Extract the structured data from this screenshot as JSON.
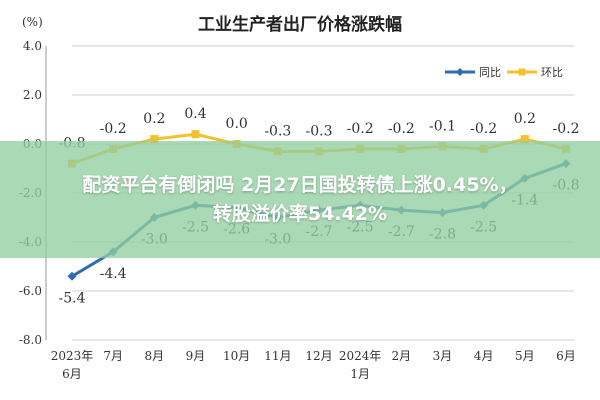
{
  "chart_data": {
    "type": "line",
    "title": "工业生产者出厂价格涨跌幅",
    "ylabel": "(%)",
    "xlabel": "",
    "ylim": [
      -8,
      4
    ],
    "yticks": [
      "4.0",
      "2.0",
      "0.0",
      "-2.0",
      "-4.0",
      "-6.0",
      "-8.0"
    ],
    "grid": true,
    "legend_position": "top-right",
    "categories": [
      [
        "2023年",
        "6月"
      ],
      [
        "7月"
      ],
      [
        "8月"
      ],
      [
        "9月"
      ],
      [
        "10月"
      ],
      [
        "11月"
      ],
      [
        "12月"
      ],
      [
        "2024年",
        "1月"
      ],
      [
        "2月"
      ],
      [
        "3月"
      ],
      [
        "4月"
      ],
      [
        "5月"
      ],
      [
        "6月"
      ]
    ],
    "series": [
      {
        "name": "同比",
        "color": "#2e6db4",
        "values": [
          -5.4,
          -4.4,
          -3.0,
          -2.5,
          -2.6,
          -3.0,
          -2.7,
          -2.5,
          -2.7,
          -2.8,
          -2.5,
          -1.4,
          -0.8
        ],
        "labels": [
          "-5.4",
          "-4.4",
          "-3.0",
          "-2.5",
          "-2.6",
          "-3.0",
          "-2.7",
          "-2.5",
          "-2.7",
          "-2.8",
          "-2.5",
          "-1.4",
          "-0.8"
        ],
        "label_position": "below"
      },
      {
        "name": "环比",
        "color": "#f2c12e",
        "values": [
          -0.8,
          -0.2,
          0.2,
          0.4,
          0.0,
          -0.3,
          -0.3,
          -0.2,
          -0.2,
          -0.1,
          -0.2,
          0.2,
          -0.2
        ],
        "labels": [
          "-0.8",
          "-0.2",
          "0.2",
          "0.4",
          "0.0",
          "-0.3",
          "-0.3",
          "-0.2",
          "-0.2",
          "-0.1",
          "-0.2",
          "0.2",
          "-0.2"
        ],
        "label_position": "above"
      }
    ]
  },
  "overlay": {
    "text": "配资平台有倒闭吗 2月27日国投转债上涨0.45%，\n转股溢价率54.42%",
    "color": "#92cea0"
  },
  "colors": {
    "grid": "#cfcfcf",
    "axis_text": "#333333"
  }
}
